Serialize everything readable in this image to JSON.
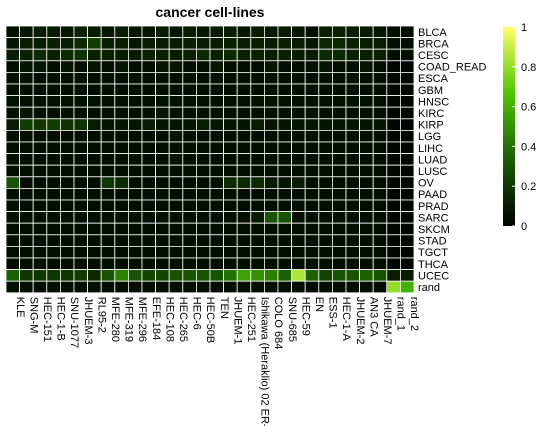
{
  "chart_data": {
    "type": "heatmap",
    "title": "cancer cell-lines",
    "rows": [
      "BLCA",
      "BRCA",
      "CESC",
      "COAD_READ",
      "ESCA",
      "GBM",
      "HNSC",
      "KIRC",
      "KIRP",
      "LGG",
      "LIHC",
      "LUAD",
      "LUSC",
      "OV",
      "PAAD",
      "PRAD",
      "SARC",
      "SKCM",
      "STAD",
      "TGCT",
      "THCA",
      "UCEC",
      "rand"
    ],
    "columns": [
      "KLE",
      "SNG-M",
      "HEC-151",
      "HEC-1-B",
      "SNU-1077",
      "JHUEM-3",
      "RL95-2",
      "MFE-280",
      "MFE-319",
      "MFE-296",
      "EFE-184",
      "HEC-108",
      "HEC-265",
      "HEC-6",
      "HEC-50B",
      "TEN",
      "JHUEM-1",
      "HEC-251",
      "Ishikawa (Heraklio) 02 ER-",
      "COLO 684",
      "SNU-685",
      "HEC-59",
      "EN",
      "ESS-1",
      "HEC-1-A",
      "JHUEM-2",
      "AN3 CA",
      "JHUEM-7",
      "rand_1",
      "rand_2"
    ],
    "values": [
      [
        0.05,
        0.08,
        0.1,
        0.1,
        0.08,
        0.12,
        0.1,
        0.08,
        0.1,
        0.08,
        0.08,
        0.1,
        0.08,
        0.1,
        0.08,
        0.1,
        0.1,
        0.08,
        0.1,
        0.08,
        0.1,
        0.08,
        0.05,
        0.12,
        0.12,
        0.1,
        0.1,
        0.08,
        0.05,
        0.05
      ],
      [
        0.08,
        0.1,
        0.1,
        0.12,
        0.1,
        0.15,
        0.22,
        0.1,
        0.1,
        0.08,
        0.1,
        0.1,
        0.1,
        0.12,
        0.1,
        0.1,
        0.12,
        0.1,
        0.1,
        0.1,
        0.12,
        0.1,
        0.08,
        0.14,
        0.14,
        0.12,
        0.1,
        0.1,
        0.05,
        0.05
      ],
      [
        0.1,
        0.12,
        0.15,
        0.12,
        0.15,
        0.18,
        0.12,
        0.12,
        0.1,
        0.1,
        0.12,
        0.12,
        0.1,
        0.12,
        0.15,
        0.12,
        0.15,
        0.12,
        0.12,
        0.1,
        0.12,
        0.1,
        0.1,
        0.15,
        0.15,
        0.12,
        0.12,
        0.12,
        0.05,
        0.05
      ],
      [
        0.05,
        0.08,
        0.08,
        0.05,
        0.08,
        0.05,
        0.08,
        0.05,
        0.08,
        0.05,
        0.05,
        0.08,
        0.08,
        0.05,
        0.05,
        0.08,
        0.05,
        0.05,
        0.05,
        0.08,
        0.05,
        0.05,
        0.05,
        0.08,
        0.05,
        0.05,
        0.08,
        0.05,
        0.02,
        0.02
      ],
      [
        0.06,
        0.06,
        0.05,
        0.06,
        0.05,
        0.06,
        0.05,
        0.06,
        0.05,
        0.06,
        0.05,
        0.06,
        0.05,
        0.06,
        0.05,
        0.06,
        0.05,
        0.06,
        0.05,
        0.06,
        0.05,
        0.06,
        0.05,
        0.06,
        0.05,
        0.06,
        0.05,
        0.06,
        0.02,
        0.02
      ],
      [
        0.05,
        0.05,
        0.05,
        0.05,
        0.05,
        0.05,
        0.05,
        0.05,
        0.05,
        0.05,
        0.05,
        0.05,
        0.05,
        0.05,
        0.05,
        0.05,
        0.05,
        0.05,
        0.05,
        0.05,
        0.05,
        0.05,
        0.05,
        0.05,
        0.05,
        0.05,
        0.05,
        0.05,
        0.02,
        0.02
      ],
      [
        0.06,
        0.06,
        0.06,
        0.06,
        0.06,
        0.06,
        0.06,
        0.06,
        0.06,
        0.06,
        0.06,
        0.06,
        0.06,
        0.06,
        0.06,
        0.06,
        0.06,
        0.06,
        0.06,
        0.06,
        0.06,
        0.06,
        0.06,
        0.06,
        0.06,
        0.06,
        0.06,
        0.06,
        0.02,
        0.02
      ],
      [
        0.06,
        0.08,
        0.06,
        0.06,
        0.06,
        0.06,
        0.06,
        0.06,
        0.06,
        0.06,
        0.06,
        0.08,
        0.06,
        0.06,
        0.06,
        0.06,
        0.06,
        0.06,
        0.06,
        0.06,
        0.06,
        0.06,
        0.06,
        0.06,
        0.06,
        0.06,
        0.06,
        0.06,
        0.02,
        0.02
      ],
      [
        0.1,
        0.22,
        0.2,
        0.22,
        0.18,
        0.18,
        0.1,
        0.08,
        0.08,
        0.08,
        0.1,
        0.08,
        0.08,
        0.08,
        0.1,
        0.08,
        0.08,
        0.08,
        0.1,
        0.08,
        0.08,
        0.08,
        0.08,
        0.08,
        0.08,
        0.08,
        0.08,
        0.08,
        0.02,
        0.02
      ],
      [
        0.05,
        0.05,
        0.05,
        0.05,
        0.05,
        0.05,
        0.05,
        0.05,
        0.05,
        0.05,
        0.05,
        0.05,
        0.08,
        0.05,
        0.05,
        0.05,
        0.05,
        0.05,
        0.05,
        0.05,
        0.05,
        0.05,
        0.05,
        0.05,
        0.05,
        0.05,
        0.05,
        0.05,
        0.02,
        0.02
      ],
      [
        0.05,
        0.05,
        0.05,
        0.05,
        0.05,
        0.05,
        0.05,
        0.05,
        0.05,
        0.05,
        0.05,
        0.05,
        0.06,
        0.05,
        0.05,
        0.05,
        0.05,
        0.05,
        0.05,
        0.05,
        0.05,
        0.05,
        0.05,
        0.05,
        0.05,
        0.05,
        0.05,
        0.05,
        0.02,
        0.02
      ],
      [
        0.05,
        0.05,
        0.05,
        0.05,
        0.05,
        0.05,
        0.05,
        0.05,
        0.05,
        0.05,
        0.05,
        0.05,
        0.08,
        0.05,
        0.05,
        0.05,
        0.05,
        0.05,
        0.05,
        0.05,
        0.05,
        0.05,
        0.05,
        0.05,
        0.05,
        0.05,
        0.05,
        0.05,
        0.02,
        0.02
      ],
      [
        0.05,
        0.05,
        0.05,
        0.05,
        0.05,
        0.05,
        0.05,
        0.05,
        0.05,
        0.05,
        0.05,
        0.05,
        0.05,
        0.05,
        0.05,
        0.05,
        0.05,
        0.05,
        0.05,
        0.05,
        0.05,
        0.05,
        0.05,
        0.05,
        0.05,
        0.05,
        0.05,
        0.05,
        0.02,
        0.02
      ],
      [
        0.3,
        0.05,
        0.05,
        0.05,
        0.05,
        0.05,
        0.05,
        0.2,
        0.15,
        0.05,
        0.05,
        0.05,
        0.05,
        0.05,
        0.05,
        0.05,
        0.15,
        0.15,
        0.15,
        0.1,
        0.08,
        0.1,
        0.05,
        0.05,
        0.05,
        0.05,
        0.05,
        0.05,
        0.02,
        0.02
      ],
      [
        0.05,
        0.05,
        0.05,
        0.05,
        0.05,
        0.05,
        0.05,
        0.05,
        0.05,
        0.05,
        0.05,
        0.05,
        0.05,
        0.05,
        0.05,
        0.05,
        0.05,
        0.05,
        0.05,
        0.05,
        0.05,
        0.05,
        0.05,
        0.05,
        0.05,
        0.05,
        0.05,
        0.05,
        0.02,
        0.02
      ],
      [
        0.05,
        0.05,
        0.05,
        0.05,
        0.05,
        0.05,
        0.05,
        0.05,
        0.05,
        0.05,
        0.05,
        0.05,
        0.05,
        0.05,
        0.05,
        0.05,
        0.05,
        0.05,
        0.05,
        0.05,
        0.05,
        0.05,
        0.05,
        0.05,
        0.05,
        0.05,
        0.05,
        0.05,
        0.02,
        0.02
      ],
      [
        0.06,
        0.06,
        0.06,
        0.06,
        0.06,
        0.06,
        0.06,
        0.06,
        0.06,
        0.06,
        0.06,
        0.06,
        0.06,
        0.06,
        0.06,
        0.06,
        0.06,
        0.06,
        0.1,
        0.3,
        0.3,
        0.06,
        0.06,
        0.06,
        0.06,
        0.06,
        0.06,
        0.06,
        0.02,
        0.02
      ],
      [
        0.05,
        0.05,
        0.05,
        0.05,
        0.05,
        0.05,
        0.05,
        0.05,
        0.05,
        0.05,
        0.05,
        0.05,
        0.05,
        0.05,
        0.05,
        0.05,
        0.05,
        0.05,
        0.05,
        0.05,
        0.05,
        0.05,
        0.05,
        0.05,
        0.05,
        0.05,
        0.05,
        0.05,
        0.02,
        0.02
      ],
      [
        0.05,
        0.05,
        0.05,
        0.05,
        0.05,
        0.05,
        0.05,
        0.05,
        0.05,
        0.05,
        0.05,
        0.05,
        0.05,
        0.05,
        0.05,
        0.05,
        0.05,
        0.05,
        0.05,
        0.05,
        0.05,
        0.05,
        0.05,
        0.05,
        0.05,
        0.05,
        0.05,
        0.05,
        0.02,
        0.02
      ],
      [
        0.05,
        0.05,
        0.05,
        0.05,
        0.05,
        0.05,
        0.05,
        0.05,
        0.05,
        0.05,
        0.05,
        0.05,
        0.05,
        0.05,
        0.05,
        0.05,
        0.05,
        0.05,
        0.05,
        0.05,
        0.05,
        0.05,
        0.05,
        0.05,
        0.05,
        0.05,
        0.05,
        0.05,
        0.02,
        0.02
      ],
      [
        0.05,
        0.05,
        0.05,
        0.05,
        0.05,
        0.05,
        0.05,
        0.05,
        0.05,
        0.05,
        0.05,
        0.05,
        0.05,
        0.05,
        0.05,
        0.05,
        0.05,
        0.05,
        0.05,
        0.05,
        0.05,
        0.05,
        0.05,
        0.05,
        0.05,
        0.05,
        0.05,
        0.05,
        0.02,
        0.02
      ],
      [
        0.35,
        0.2,
        0.2,
        0.2,
        0.2,
        0.22,
        0.15,
        0.3,
        0.45,
        0.3,
        0.25,
        0.25,
        0.3,
        0.3,
        0.3,
        0.3,
        0.4,
        0.55,
        0.5,
        0.45,
        0.35,
        0.85,
        0.35,
        0.25,
        0.3,
        0.3,
        0.35,
        0.3,
        0.1,
        0.1
      ],
      [
        0.05,
        0.05,
        0.05,
        0.05,
        0.05,
        0.05,
        0.05,
        0.05,
        0.05,
        0.05,
        0.05,
        0.05,
        0.05,
        0.05,
        0.05,
        0.05,
        0.05,
        0.05,
        0.05,
        0.05,
        0.05,
        0.05,
        0.05,
        0.05,
        0.05,
        0.05,
        0.05,
        0.05,
        0.8,
        0.6
      ]
    ],
    "legend": {
      "min": 0,
      "max": 1,
      "ticks": [
        "1",
        "0.8",
        "0.6",
        "0.4",
        "0.2",
        "0"
      ],
      "colors": [
        "#000000",
        "#1a5c00",
        "#4cc800",
        "#ffff66"
      ]
    },
    "grid_color": "#ffffff"
  }
}
